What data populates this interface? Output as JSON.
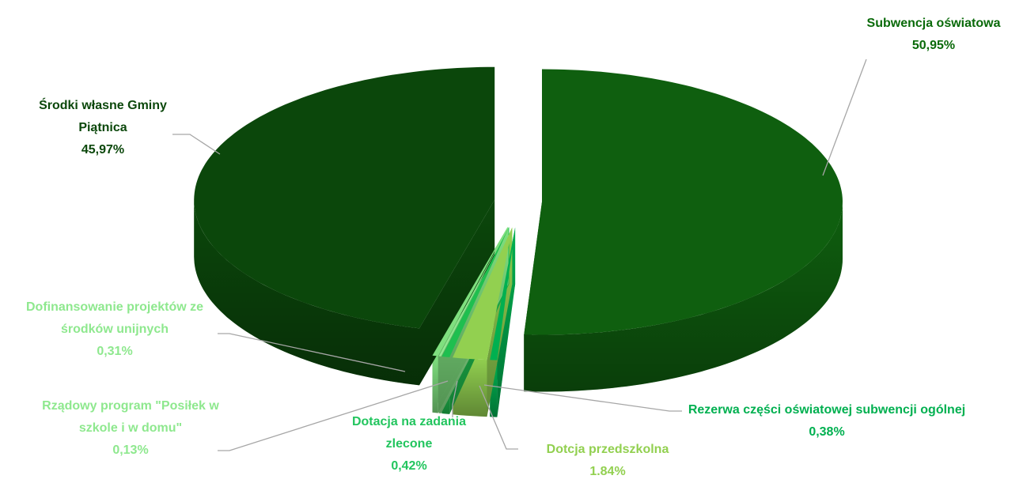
{
  "chart_data": {
    "type": "pie",
    "categories": [
      "Subwencja oświatowa",
      "Rezerwa części oświatowej subwencji ogólnej",
      "Dotcja przedszkolna",
      "Dotacja na zadania zlecone",
      "Rządowy program \"Posiłek w szkole i w domu\"",
      "Dofinansowanie projektów ze środków unijnych",
      "Środki własne Gminy Piątnica"
    ],
    "values": [
      50.95,
      0.38,
      1.84,
      0.42,
      0.13,
      0.31,
      45.97
    ],
    "value_labels": [
      "50,95%",
      "0,38%",
      "1.84%",
      "0,42%",
      "0,13%",
      "0,31%",
      "45,97%"
    ],
    "colors": [
      "#0f5f0f",
      "#00b050",
      "#92d050",
      "#1fbf4f",
      "#8fe88f",
      "#7fe07f",
      "#0b470b"
    ]
  }
}
